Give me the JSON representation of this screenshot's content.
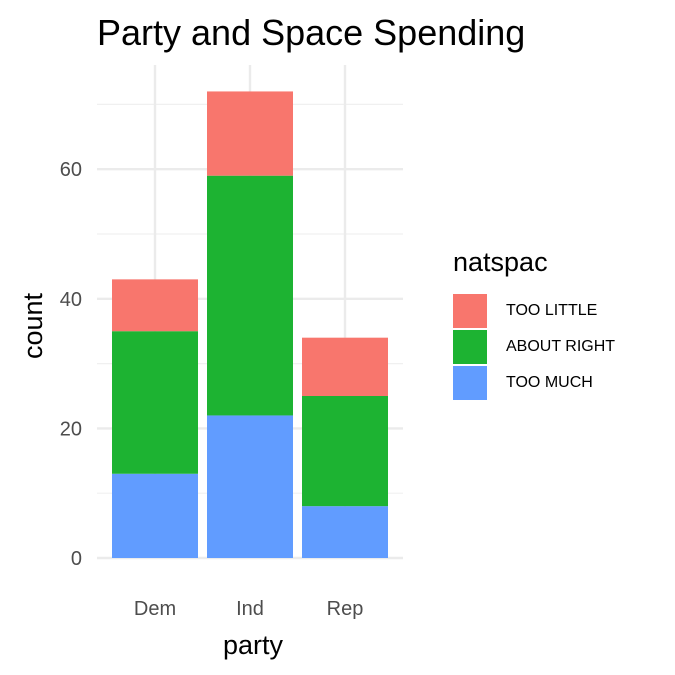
{
  "chart_data": {
    "type": "bar",
    "stacked": true,
    "title": "Party and Space Spending",
    "xlabel": "party",
    "ylabel": "count",
    "categories": [
      "Dem",
      "Ind",
      "Rep"
    ],
    "series": [
      {
        "name": "TOO MUCH",
        "color": "#619CFF",
        "values": [
          13,
          22,
          8
        ]
      },
      {
        "name": "ABOUT RIGHT",
        "color": "#1DB332",
        "values": [
          22,
          37,
          17
        ]
      },
      {
        "name": "TOO LITTLE",
        "color": "#F8766D",
        "values": [
          8,
          13,
          9
        ]
      }
    ],
    "ylim": [
      0,
      76
    ],
    "yticks": [
      0,
      20,
      40,
      60
    ],
    "grid": true,
    "legend": {
      "title": "natspac",
      "placement": "right",
      "order": [
        "TOO LITTLE",
        "ABOUT RIGHT",
        "TOO MUCH"
      ]
    }
  }
}
